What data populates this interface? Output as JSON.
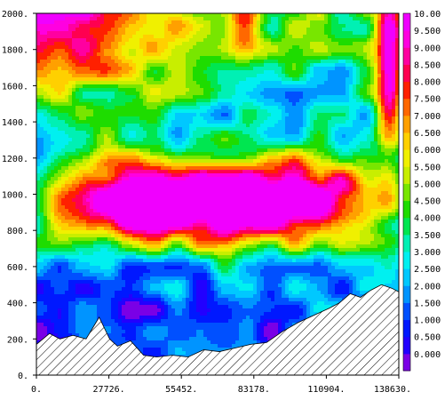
{
  "chart_data": {
    "type": "heatmap",
    "title": "",
    "xlabel": "",
    "ylabel": "",
    "xlim": [
      0,
      138630
    ],
    "ylim": [
      0,
      2000
    ],
    "x_tick_labels": [
      "0.",
      "27726.",
      "55452.",
      "83178.",
      "110904.",
      "138630."
    ],
    "x_tick_values": [
      0,
      27726,
      55452,
      83178,
      110904,
      138630
    ],
    "y_tick_labels": [
      "0.",
      "200.",
      "400.",
      "600.",
      "800.",
      "1000.",
      "1200.",
      "1400.",
      "1600.",
      "1800.",
      "2000."
    ],
    "y_tick_values": [
      0,
      200,
      400,
      600,
      800,
      1000,
      1200,
      1400,
      1600,
      1800,
      2000
    ],
    "colorbar": {
      "labels": [
        "0.000",
        "0.500",
        "1.000",
        "1.500",
        "2.000",
        "2.500",
        "3.000",
        "3.500",
        "4.000",
        "4.500",
        "5.000",
        "5.500",
        "6.000",
        "6.500",
        "7.000",
        "7.500",
        "8.000",
        "8.500",
        "9.000",
        "9.500",
        "10.00"
      ],
      "levels": [
        0,
        0.5,
        1,
        1.5,
        2,
        2.5,
        3,
        3.5,
        4,
        4.5,
        5,
        5.5,
        6,
        6.5,
        7,
        7.5,
        8,
        8.5,
        9,
        9.5,
        10,
        10.5
      ],
      "colors": [
        "#7a00e6",
        "#2200ff",
        "#0018ff",
        "#0050ff",
        "#0094ff",
        "#00c8ff",
        "#00f0f0",
        "#00f0b4",
        "#00e650",
        "#1edc00",
        "#78e600",
        "#c8ee00",
        "#f0f000",
        "#ffd000",
        "#ffa000",
        "#ff6800",
        "#ff2000",
        "#ff0050",
        "#ff00a0",
        "#ff00e0",
        "#f000ff"
      ]
    },
    "terrain": {
      "x": [
        0,
        5000,
        9000,
        14000,
        19000,
        24000,
        28000,
        31000,
        36000,
        41000,
        46000,
        52000,
        58000,
        64000,
        70000,
        76000,
        82000,
        88000,
        94000,
        100000,
        106000,
        112000,
        116000,
        120000,
        124000,
        128000,
        132000,
        136000,
        138630
      ],
      "y": [
        170,
        230,
        200,
        220,
        200,
        320,
        200,
        160,
        190,
        110,
        100,
        110,
        100,
        140,
        130,
        150,
        170,
        180,
        240,
        290,
        330,
        370,
        400,
        450,
        430,
        470,
        500,
        480,
        460
      ]
    },
    "field_anchors": {
      "magenta_core_center": [
        69000,
        970
      ],
      "high_zone_right_top": [
        135000,
        1700
      ]
    }
  }
}
